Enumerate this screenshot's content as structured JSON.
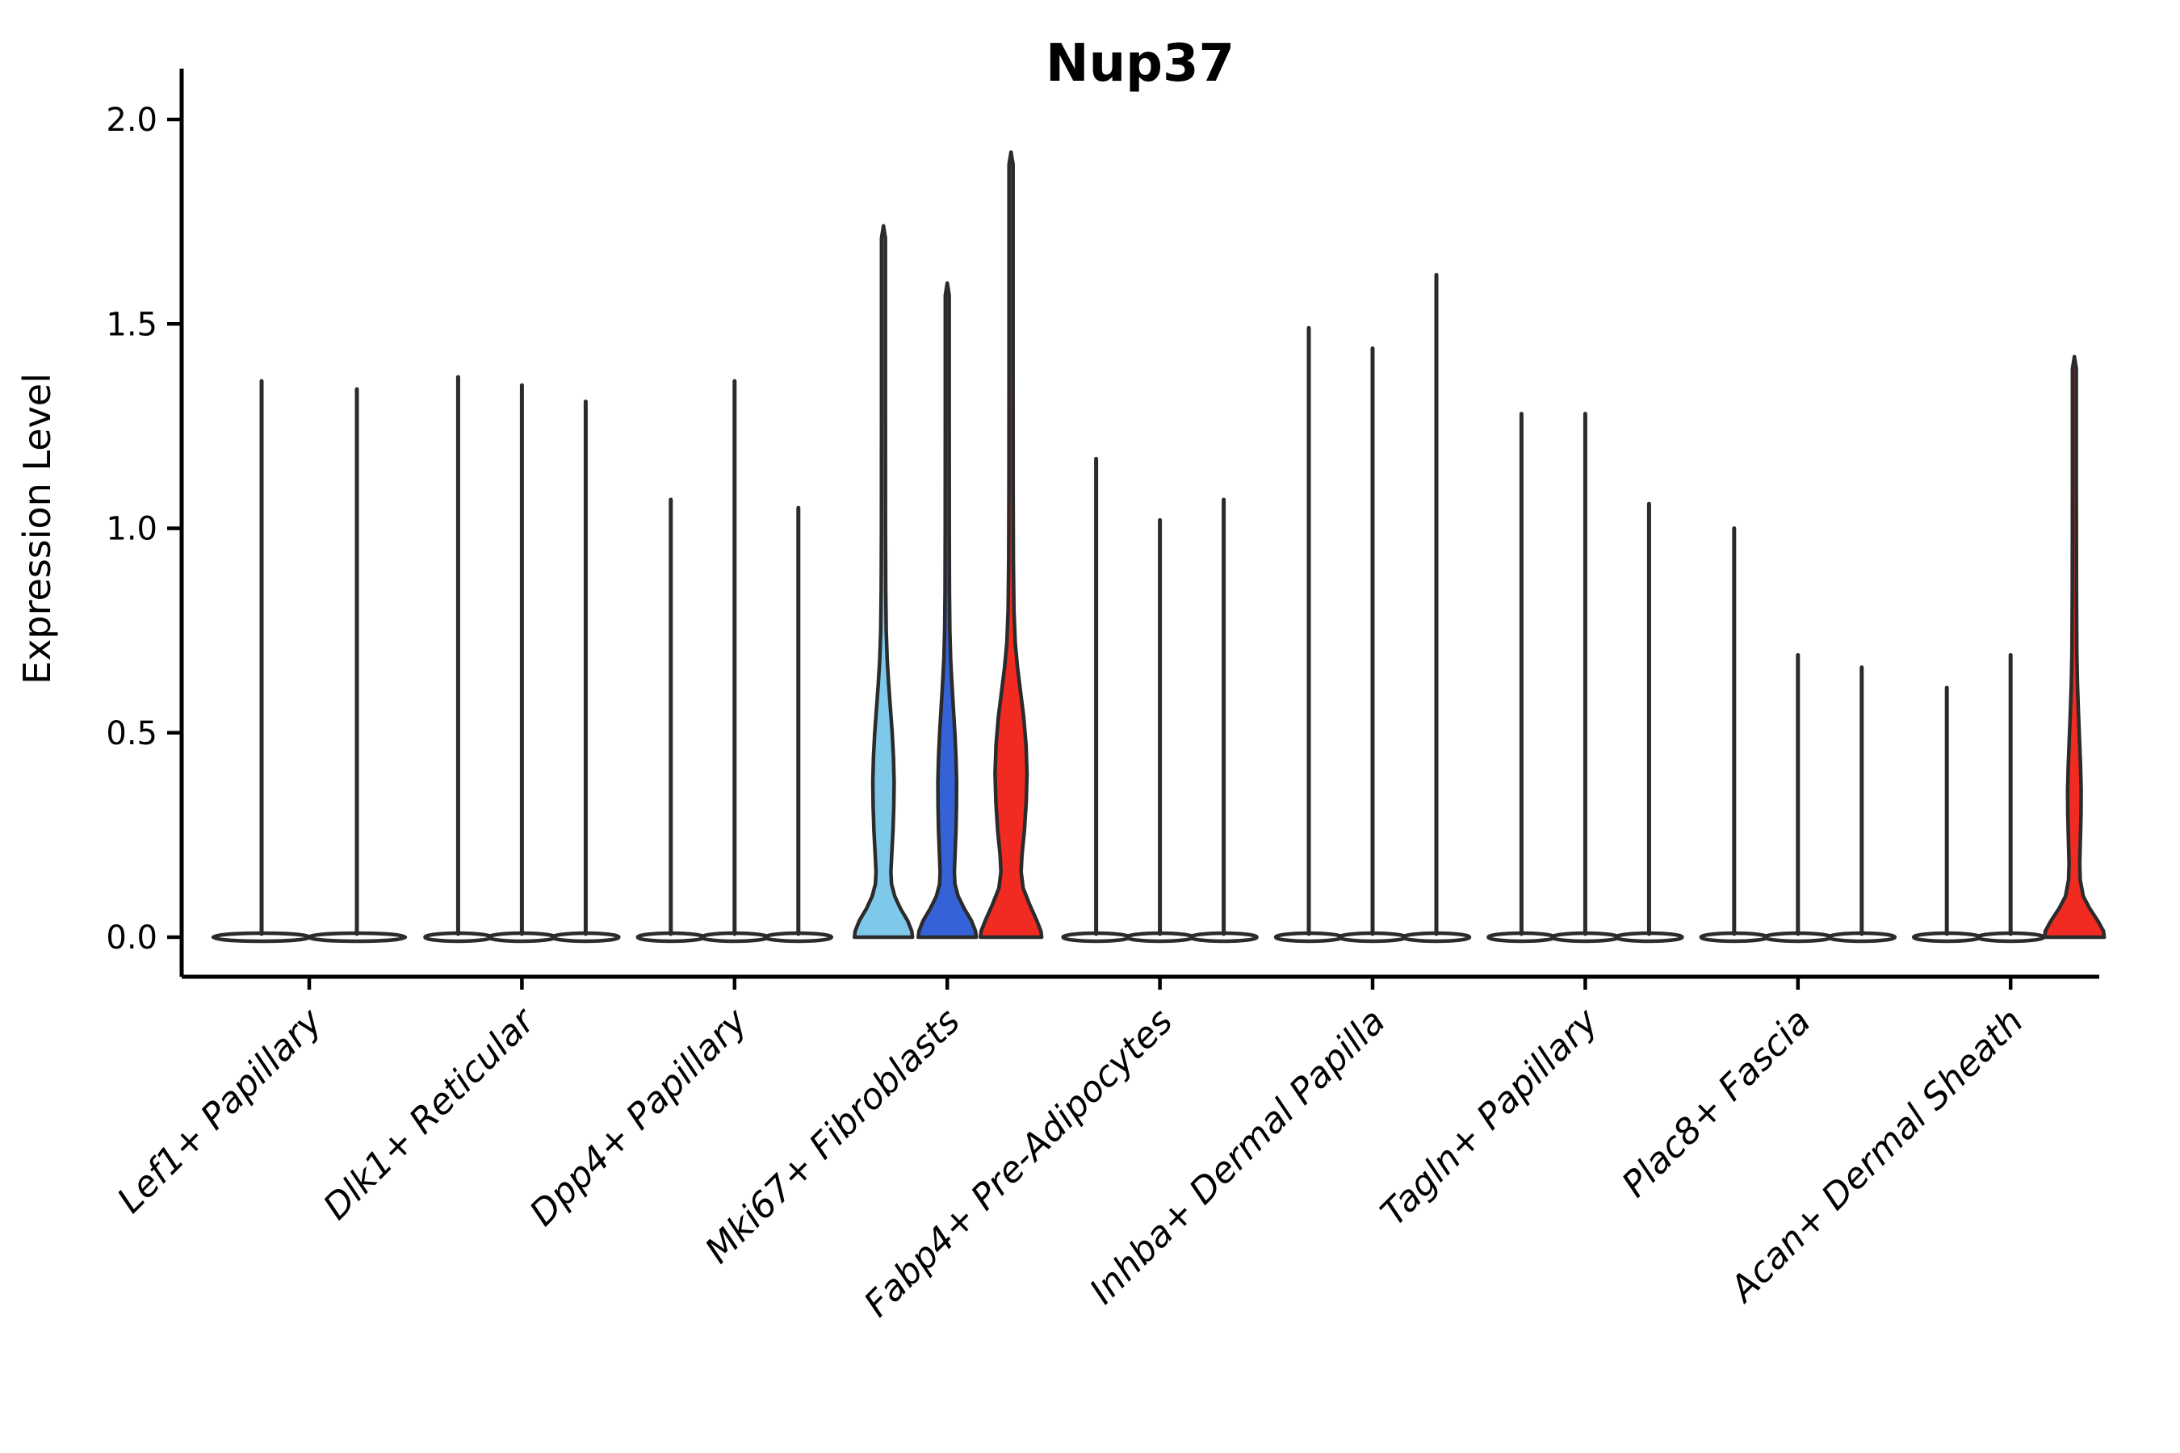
{
  "figure": {
    "background": "#ffffff"
  },
  "chart_data": {
    "type": "violin",
    "title": "Nup37",
    "ylabel": "Expression Level",
    "xlabel": "",
    "ylim": [
      -0.1,
      2.12
    ],
    "ytick_labels": [
      "0.0",
      "0.5",
      "1.0",
      "1.5",
      "2.0"
    ],
    "ytick_values": [
      0.0,
      0.5,
      1.0,
      1.5,
      2.0
    ],
    "grid": false,
    "legend": "none",
    "colors": {
      "outline": "#2b2b2b",
      "spike": "#2b2b2b",
      "default_fill": "#ffffff",
      "highlight_lightblue": "#7ec8ea",
      "highlight_blue": "#3563d7",
      "highlight_red": "#f12a22"
    },
    "categories": [
      "Lef1+ Papillary",
      "Dlk1+ Reticular",
      "Dpp4+ Papillary",
      "Mki67+ Fibroblasts",
      "Fabp4+ Pre-Adipocytes",
      "Inhba+ Dermal Papilla",
      "Tagln+ Papillary",
      "Plac8+ Fascia",
      "Acan+ Dermal Sheath"
    ],
    "groups": [
      {
        "category": "Lef1+ Papillary",
        "violins": [
          {
            "max": 1.36,
            "style": "spike",
            "fill": "#ffffff"
          },
          {
            "max": 1.34,
            "style": "spike",
            "fill": "#ffffff"
          }
        ]
      },
      {
        "category": "Dlk1+ Reticular",
        "violins": [
          {
            "max": 1.37,
            "style": "spike",
            "fill": "#ffffff"
          },
          {
            "max": 1.35,
            "style": "spike",
            "fill": "#ffffff"
          },
          {
            "max": 1.31,
            "style": "spike",
            "fill": "#ffffff"
          }
        ]
      },
      {
        "category": "Dpp4+ Papillary",
        "violins": [
          {
            "max": 1.07,
            "style": "spike",
            "fill": "#ffffff"
          },
          {
            "max": 1.36,
            "style": "spike",
            "fill": "#ffffff"
          },
          {
            "max": 1.05,
            "style": "spike",
            "fill": "#ffffff"
          }
        ]
      },
      {
        "category": "Mki67+ Fibroblasts",
        "violins": [
          {
            "max": 1.74,
            "style": "violin",
            "fill": "#7ec8ea",
            "profile": [
              [
                0.0,
                36
              ],
              [
                0.015,
                35
              ],
              [
                0.04,
                30
              ],
              [
                0.07,
                21
              ],
              [
                0.1,
                14
              ],
              [
                0.13,
                10
              ],
              [
                0.16,
                9.2
              ],
              [
                0.2,
                10.2
              ],
              [
                0.26,
                11.8
              ],
              [
                0.32,
                12.8
              ],
              [
                0.38,
                13.2
              ],
              [
                0.44,
                12.4
              ],
              [
                0.5,
                10.8
              ],
              [
                0.56,
                8.6
              ],
              [
                0.62,
                6.4
              ],
              [
                0.68,
                4.6
              ],
              [
                0.75,
                3.4
              ],
              [
                0.85,
                2.8
              ],
              [
                1.0,
                2.5
              ],
              [
                1.3,
                2.4
              ],
              [
                1.6,
                2.4
              ],
              [
                1.71,
                2.4
              ],
              [
                1.74,
                0
              ]
            ]
          },
          {
            "max": 1.6,
            "style": "violin",
            "fill": "#3563d7",
            "profile": [
              [
                0.0,
                36
              ],
              [
                0.015,
                35
              ],
              [
                0.04,
                30
              ],
              [
                0.07,
                21
              ],
              [
                0.1,
                13.5
              ],
              [
                0.13,
                9.5
              ],
              [
                0.16,
                8.8
              ],
              [
                0.2,
                9.6
              ],
              [
                0.26,
                10.8
              ],
              [
                0.32,
                11.4
              ],
              [
                0.38,
                11.6
              ],
              [
                0.44,
                10.8
              ],
              [
                0.5,
                9.4
              ],
              [
                0.56,
                7.6
              ],
              [
                0.62,
                5.8
              ],
              [
                0.68,
                4.2
              ],
              [
                0.75,
                3.2
              ],
              [
                0.85,
                2.7
              ],
              [
                1.0,
                2.5
              ],
              [
                1.3,
                2.4
              ],
              [
                1.57,
                2.4
              ],
              [
                1.6,
                0
              ]
            ]
          },
          {
            "max": 1.92,
            "style": "violin",
            "fill": "#f12a22",
            "profile": [
              [
                0.0,
                38
              ],
              [
                0.015,
                37
              ],
              [
                0.04,
                32
              ],
              [
                0.08,
                23
              ],
              [
                0.12,
                15
              ],
              [
                0.16,
                12.5
              ],
              [
                0.2,
                13.5
              ],
              [
                0.26,
                16.5
              ],
              [
                0.33,
                18.8
              ],
              [
                0.4,
                19.8
              ],
              [
                0.47,
                18.6
              ],
              [
                0.54,
                15.6
              ],
              [
                0.6,
                11.8
              ],
              [
                0.66,
                8.0
              ],
              [
                0.72,
                5.2
              ],
              [
                0.8,
                3.6
              ],
              [
                0.92,
                2.9
              ],
              [
                1.1,
                2.6
              ],
              [
                1.4,
                2.5
              ],
              [
                1.7,
                2.5
              ],
              [
                1.89,
                2.5
              ],
              [
                1.92,
                0
              ]
            ]
          }
        ]
      },
      {
        "category": "Fabp4+ Pre-Adipocytes",
        "violins": [
          {
            "max": 1.17,
            "style": "spike",
            "fill": "#ffffff"
          },
          {
            "max": 1.02,
            "style": "spike",
            "fill": "#ffffff"
          },
          {
            "max": 1.07,
            "style": "spike",
            "fill": "#ffffff"
          }
        ]
      },
      {
        "category": "Inhba+ Dermal Papilla",
        "violins": [
          {
            "max": 1.49,
            "style": "spike",
            "fill": "#ffffff"
          },
          {
            "max": 1.44,
            "style": "spike",
            "fill": "#ffffff"
          },
          {
            "max": 1.62,
            "style": "spike",
            "fill": "#ffffff"
          }
        ]
      },
      {
        "category": "Tagln+ Papillary",
        "violins": [
          {
            "max": 1.28,
            "style": "spike",
            "fill": "#ffffff"
          },
          {
            "max": 1.28,
            "style": "spike",
            "fill": "#ffffff"
          },
          {
            "max": 1.06,
            "style": "spike",
            "fill": "#ffffff"
          }
        ]
      },
      {
        "category": "Plac8+ Fascia",
        "violins": [
          {
            "max": 1.0,
            "style": "spike",
            "fill": "#ffffff"
          },
          {
            "max": 0.69,
            "style": "spike",
            "fill": "#ffffff"
          },
          {
            "max": 0.66,
            "style": "spike",
            "fill": "#ffffff"
          }
        ]
      },
      {
        "category": "Acan+ Dermal Sheath",
        "violins": [
          {
            "max": 0.61,
            "style": "spike",
            "fill": "#ffffff"
          },
          {
            "max": 0.69,
            "style": "spike",
            "fill": "#ffffff"
          },
          {
            "max": 1.42,
            "style": "violin",
            "fill": "#f12a22",
            "profile": [
              [
                0.0,
                37
              ],
              [
                0.015,
                36
              ],
              [
                0.04,
                29
              ],
              [
                0.07,
                19
              ],
              [
                0.1,
                11
              ],
              [
                0.14,
                7.2
              ],
              [
                0.18,
                6.6
              ],
              [
                0.24,
                7.4
              ],
              [
                0.3,
                8.2
              ],
              [
                0.36,
                8.4
              ],
              [
                0.42,
                7.6
              ],
              [
                0.48,
                6.4
              ],
              [
                0.55,
                5.0
              ],
              [
                0.62,
                3.8
              ],
              [
                0.7,
                3.0
              ],
              [
                0.85,
                2.6
              ],
              [
                1.1,
                2.4
              ],
              [
                1.39,
                2.4
              ],
              [
                1.42,
                0
              ]
            ]
          }
        ]
      }
    ]
  }
}
